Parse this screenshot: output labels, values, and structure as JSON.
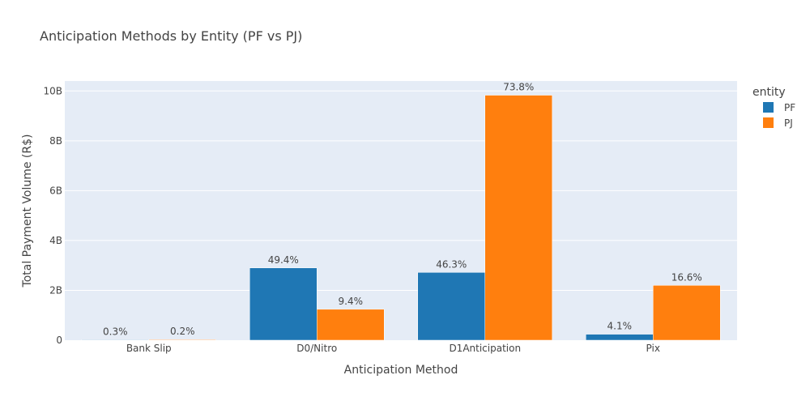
{
  "chart_data": {
    "type": "bar",
    "title": "Anticipation Methods by Entity (PF vs PJ)",
    "xlabel": "Anticipation Method",
    "ylabel": "Total Payment Volume (R$)",
    "categories": [
      "Bank Slip",
      "D0/Nitro",
      "D1Anticipation",
      "Pix"
    ],
    "ylim": [
      0,
      10400000000
    ],
    "yticks": [
      0,
      2000000000,
      4000000000,
      6000000000,
      8000000000,
      10000000000
    ],
    "ytick_labels": [
      "0",
      "2B",
      "4B",
      "6B",
      "8B",
      "10B"
    ],
    "grid": true,
    "legend": {
      "title": "entity",
      "placement": "top-right"
    },
    "series": [
      {
        "name": "PF",
        "color": "#1f77b4",
        "values": [
          20000000,
          2900000000,
          2720000000,
          240000000
        ],
        "labels": [
          "0.3%",
          "49.4%",
          "46.3%",
          "4.1%"
        ]
      },
      {
        "name": "PJ",
        "color": "#ff7f0e",
        "values": [
          25000000,
          1240000000,
          9830000000,
          2200000000
        ],
        "labels": [
          "0.2%",
          "9.4%",
          "73.8%",
          "16.6%"
        ]
      }
    ]
  }
}
